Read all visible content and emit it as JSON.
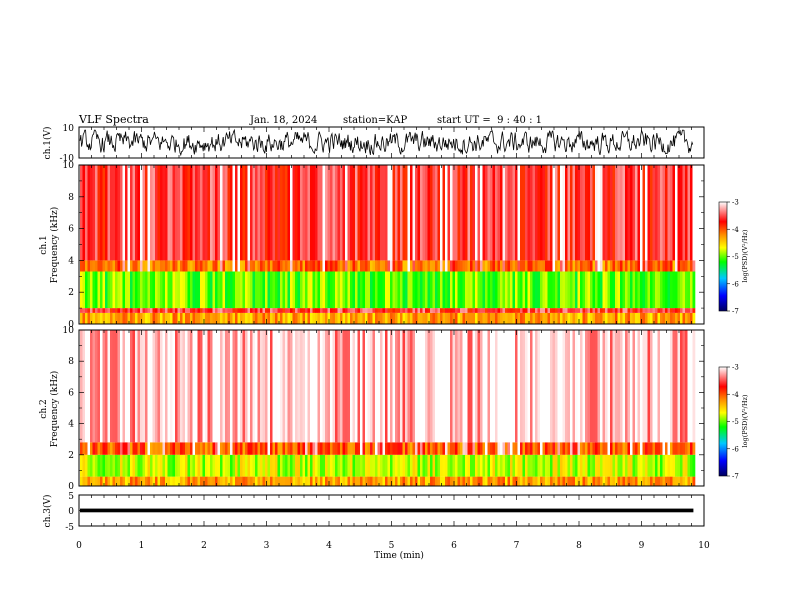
{
  "header": {
    "title": "VLF Spectra",
    "date": "Jan. 18, 2024",
    "station": "station=KAP",
    "start": "start UT =  9 : 40 : 1"
  },
  "chart_data": [
    {
      "panel": "ch1-waveform",
      "type": "line",
      "ylabel": "ch.1(V)",
      "ylim": [
        -10,
        10
      ],
      "yticks": [
        "10",
        "-10"
      ],
      "xlim": [
        0,
        10
      ],
      "data_end_min": 9.83,
      "amplitude_range": [
        -8,
        8
      ],
      "color": "#000000"
    },
    {
      "panel": "ch1-spectrogram",
      "type": "heatmap",
      "ylabel": "ch.1\nFrequency (kHz)",
      "ylim": [
        0,
        10
      ],
      "yticks": [
        "0",
        "2",
        "4",
        "6",
        "8",
        "10"
      ],
      "xlim": [
        0,
        10
      ],
      "data_end_min": 9.83,
      "dominant_log_psd_by_band": [
        {
          "freq": [
            0.0,
            0.7
          ],
          "logpsd": -4.3
        },
        {
          "freq": [
            0.7,
            1.0
          ],
          "logpsd": -3.6
        },
        {
          "freq": [
            1.0,
            3.3
          ],
          "logpsd": -5.0
        },
        {
          "freq": [
            3.3,
            4.0
          ],
          "logpsd": -4.1
        },
        {
          "freq": [
            4.0,
            10.0
          ],
          "logpsd": -3.6
        }
      ],
      "colorbar": {
        "label": "log(PSD)(V²/Hz)",
        "range": [
          -7,
          -3
        ],
        "ticks": [
          "-3",
          "-4",
          "-5",
          "-6",
          "-7"
        ]
      }
    },
    {
      "panel": "ch2-spectrogram",
      "type": "heatmap",
      "ylabel": "ch.2\nFrequency (kHz)",
      "ylim": [
        0,
        10
      ],
      "yticks": [
        "0",
        "2",
        "4",
        "6",
        "8",
        "10"
      ],
      "xlim": [
        0,
        10
      ],
      "data_end_min": 9.83,
      "dominant_log_psd_by_band": [
        {
          "freq": [
            0.0,
            0.6
          ],
          "logpsd": -4.3
        },
        {
          "freq": [
            0.6,
            2.0
          ],
          "logpsd": -4.8
        },
        {
          "freq": [
            2.0,
            2.8
          ],
          "logpsd": -4.0
        },
        {
          "freq": [
            2.8,
            10.0
          ],
          "logpsd": -3.2
        }
      ],
      "colorbar": {
        "label": "log(PSD)(V²/Hz)",
        "range": [
          -7,
          -3
        ],
        "ticks": [
          "-3",
          "-4",
          "-5",
          "-6",
          "-7"
        ]
      }
    },
    {
      "panel": "ch3-waveform",
      "type": "line",
      "ylabel": "ch.3(V)",
      "ylim": [
        -5,
        5
      ],
      "yticks": [
        "5",
        "0",
        "-5"
      ],
      "xlim": [
        0,
        10
      ],
      "data_end_min": 9.83,
      "amplitude_range": [
        -0.6,
        0.6
      ],
      "color": "#000000"
    }
  ],
  "xaxis": {
    "label": "Time (min)",
    "ticks": [
      "0",
      "1",
      "2",
      "3",
      "4",
      "5",
      "6",
      "7",
      "8",
      "9",
      "10"
    ]
  },
  "colormap": [
    "#000060",
    "#0000ff",
    "#00c8ff",
    "#00ff00",
    "#ffff00",
    "#ff8c00",
    "#ff0000",
    "#ffffff"
  ]
}
